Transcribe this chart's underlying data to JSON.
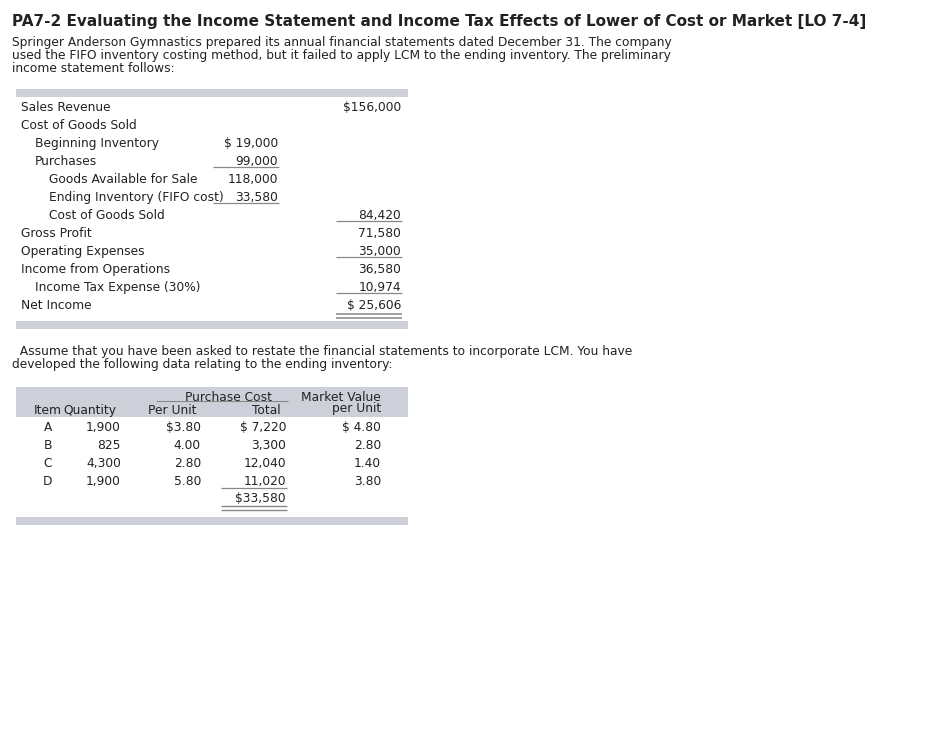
{
  "title": "PA7-2 Evaluating the Income Statement and Income Tax Effects of Lower of Cost or Market [LO 7-4]",
  "intro_text": "Springer Anderson Gymnastics prepared its annual financial statements dated December 31. The company\nused the FIFO inventory costing method, but it failed to apply LCM to the ending inventory. The preliminary\nincome statement follows:",
  "income_statement_rows": [
    {
      "label": "Sales Revenue",
      "indent": 0,
      "col1": "",
      "col2": "$156,000",
      "sep_after": false,
      "double_after": false
    },
    {
      "label": "Cost of Goods Sold",
      "indent": 0,
      "col1": "",
      "col2": "",
      "sep_after": false,
      "double_after": false
    },
    {
      "label": "Beginning Inventory",
      "indent": 1,
      "col1": "$ 19,000",
      "col2": "",
      "sep_after": false,
      "double_after": false
    },
    {
      "label": "Purchases",
      "indent": 1,
      "col1": "99,000",
      "col2": "",
      "sep_after": true,
      "double_after": false
    },
    {
      "label": "Goods Available for Sale",
      "indent": 2,
      "col1": "118,000",
      "col2": "",
      "sep_after": false,
      "double_after": false
    },
    {
      "label": "Ending Inventory (FIFO cost)",
      "indent": 2,
      "col1": "33,580",
      "col2": "",
      "sep_after": true,
      "double_after": false
    },
    {
      "label": "Cost of Goods Sold",
      "indent": 2,
      "col1": "",
      "col2": "84,420",
      "sep_after": true,
      "double_after": false
    },
    {
      "label": "Gross Profit",
      "indent": 0,
      "col1": "",
      "col2": "71,580",
      "sep_after": false,
      "double_after": false
    },
    {
      "label": "Operating Expenses",
      "indent": 0,
      "col1": "",
      "col2": "35,000",
      "sep_after": true,
      "double_after": false
    },
    {
      "label": "Income from Operations",
      "indent": 0,
      "col1": "",
      "col2": "36,580",
      "sep_after": false,
      "double_after": false
    },
    {
      "label": "Income Tax Expense (30%)",
      "indent": 1,
      "col1": "",
      "col2": "10,974",
      "sep_after": true,
      "double_after": false
    },
    {
      "label": "Net Income",
      "indent": 0,
      "col1": "",
      "col2": "$ 25,606",
      "sep_after": false,
      "double_after": true
    }
  ],
  "middle_text": "  Assume that you have been asked to restate the financial statements to incorporate LCM. You have\ndeveloped the following data relating to the ending inventory:",
  "inv_rows": [
    {
      "item": "A",
      "quantity": "1,900",
      "per_unit": "$3.80",
      "total": "$ 7,220",
      "market": "$ 4.80"
    },
    {
      "item": "B",
      "quantity": "825",
      "per_unit": "4.00",
      "total": "3,300",
      "market": "2.80"
    },
    {
      "item": "C",
      "quantity": "4,300",
      "per_unit": "2.80",
      "total": "12,040",
      "market": "1.40"
    },
    {
      "item": "D",
      "quantity": "1,900",
      "per_unit": "5.80",
      "total": "11,020",
      "market": "3.80"
    }
  ],
  "inv_total": "$33,580",
  "header_bg": "#cdd0d8",
  "footer_bg": "#cdd0d8",
  "white": "#ffffff",
  "text_color": "#222222",
  "sep_color": "#888888",
  "font_size": 8.8,
  "title_font_size": 11.0
}
